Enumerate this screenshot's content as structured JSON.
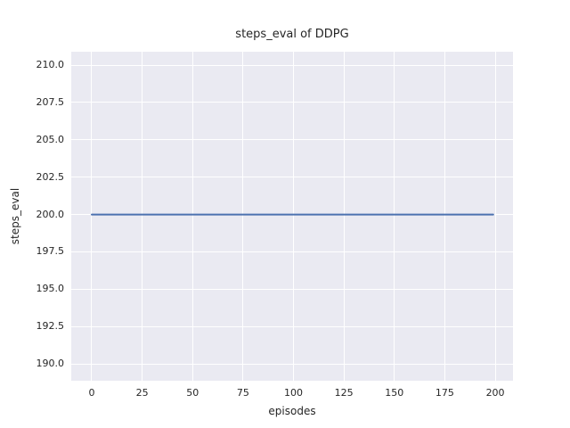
{
  "chart_data": {
    "type": "line",
    "title": "steps_eval of DDPG",
    "xlabel": "episodes",
    "ylabel": "steps_eval",
    "xlim": [
      -10.15,
      208.8
    ],
    "ylim": [
      188.87,
      210.9
    ],
    "x_ticks": [
      {
        "value": 0,
        "label": "0"
      },
      {
        "value": 25,
        "label": "25"
      },
      {
        "value": 50,
        "label": "50"
      },
      {
        "value": 75,
        "label": "75"
      },
      {
        "value": 100,
        "label": "100"
      },
      {
        "value": 125,
        "label": "125"
      },
      {
        "value": 150,
        "label": "150"
      },
      {
        "value": 175,
        "label": "175"
      },
      {
        "value": 200,
        "label": "200"
      }
    ],
    "y_ticks": [
      {
        "value": 190.0,
        "label": "190.0"
      },
      {
        "value": 192.5,
        "label": "192.5"
      },
      {
        "value": 195.0,
        "label": "195.0"
      },
      {
        "value": 197.5,
        "label": "197.5"
      },
      {
        "value": 200.0,
        "label": "200.0"
      },
      {
        "value": 202.5,
        "label": "202.5"
      },
      {
        "value": 205.0,
        "label": "205.0"
      },
      {
        "value": 207.5,
        "label": "207.5"
      },
      {
        "value": 210.0,
        "label": "210.0"
      }
    ],
    "grid": true,
    "grid_color": "#ffffff",
    "plot_background": "#eaeaf2",
    "figure_background": "#ffffff",
    "series": [
      {
        "name": "DDPG",
        "color": "#4c72b0",
        "line_width": 2,
        "x": [
          0,
          199
        ],
        "y": [
          200,
          200
        ]
      }
    ]
  }
}
